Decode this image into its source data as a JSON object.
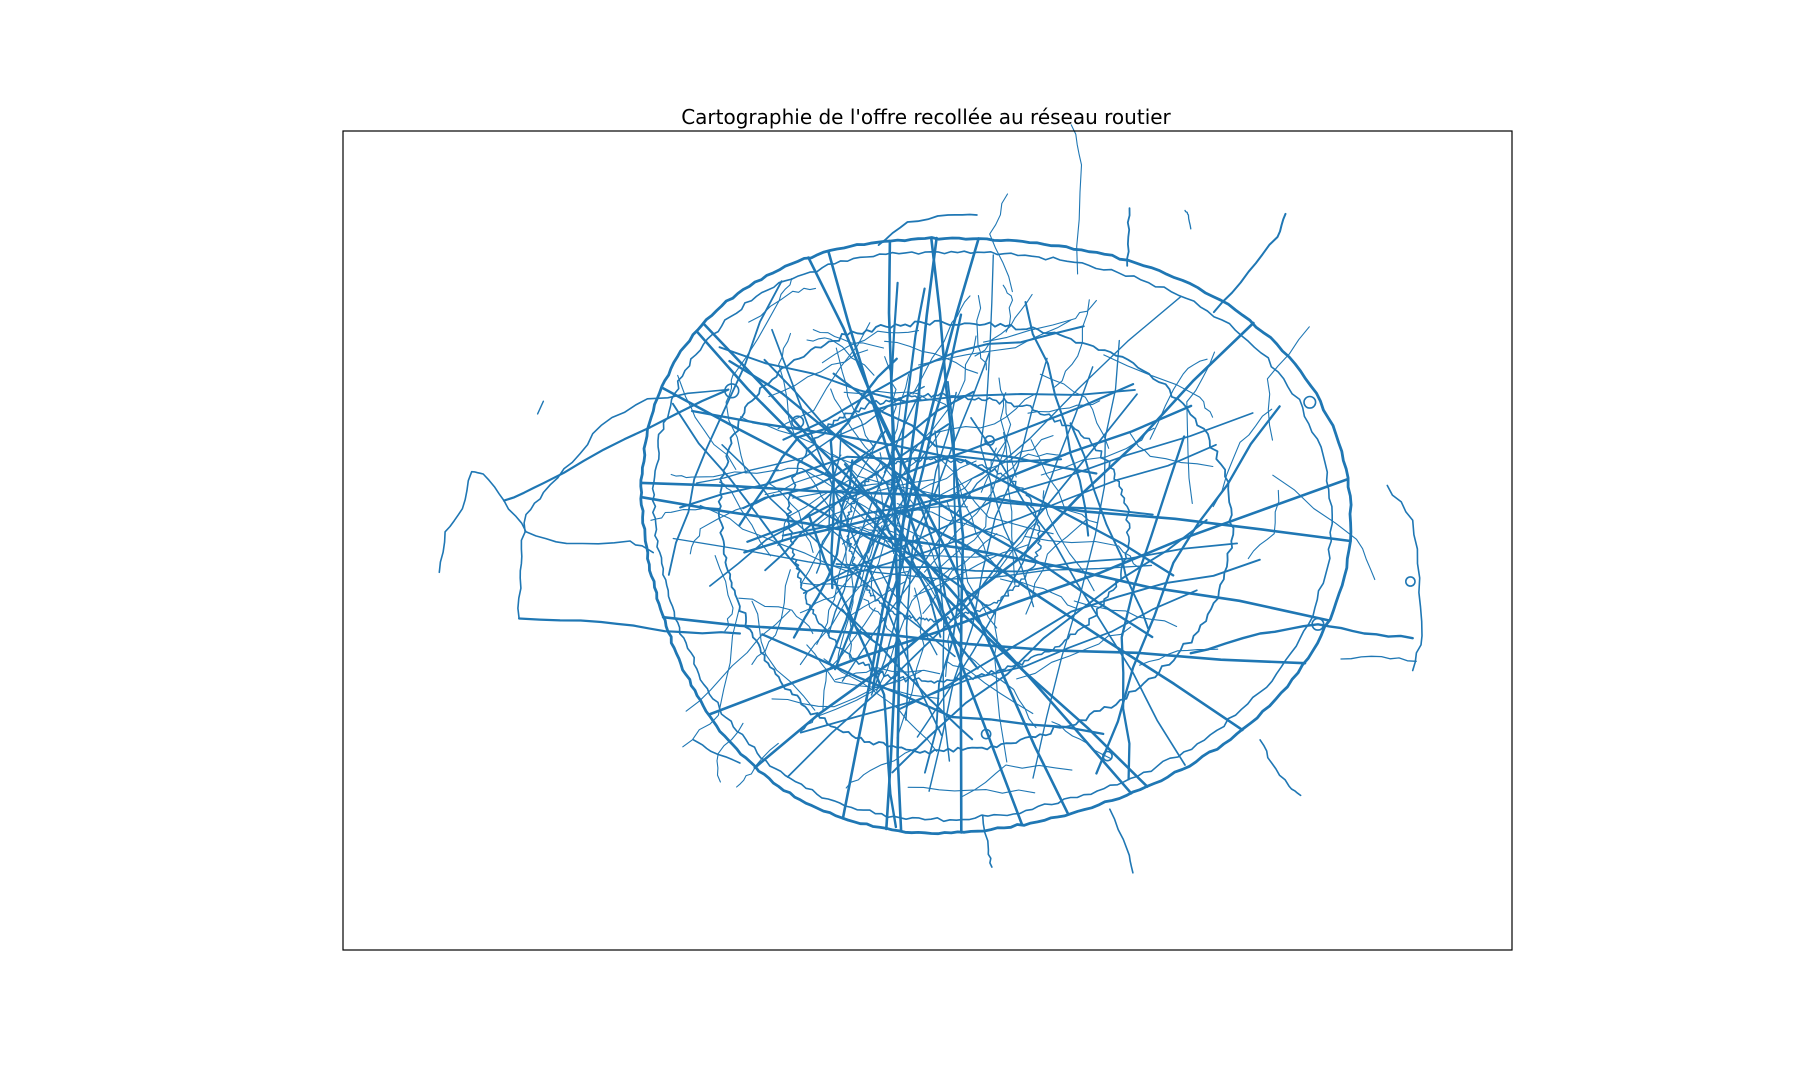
{
  "figure": {
    "title": "Cartographie de l'offre recollée au réseau routier"
  },
  "map": {
    "geometry": "road network lines (Paris)",
    "axes_visible": false,
    "line_color": "#1f77b4"
  }
}
